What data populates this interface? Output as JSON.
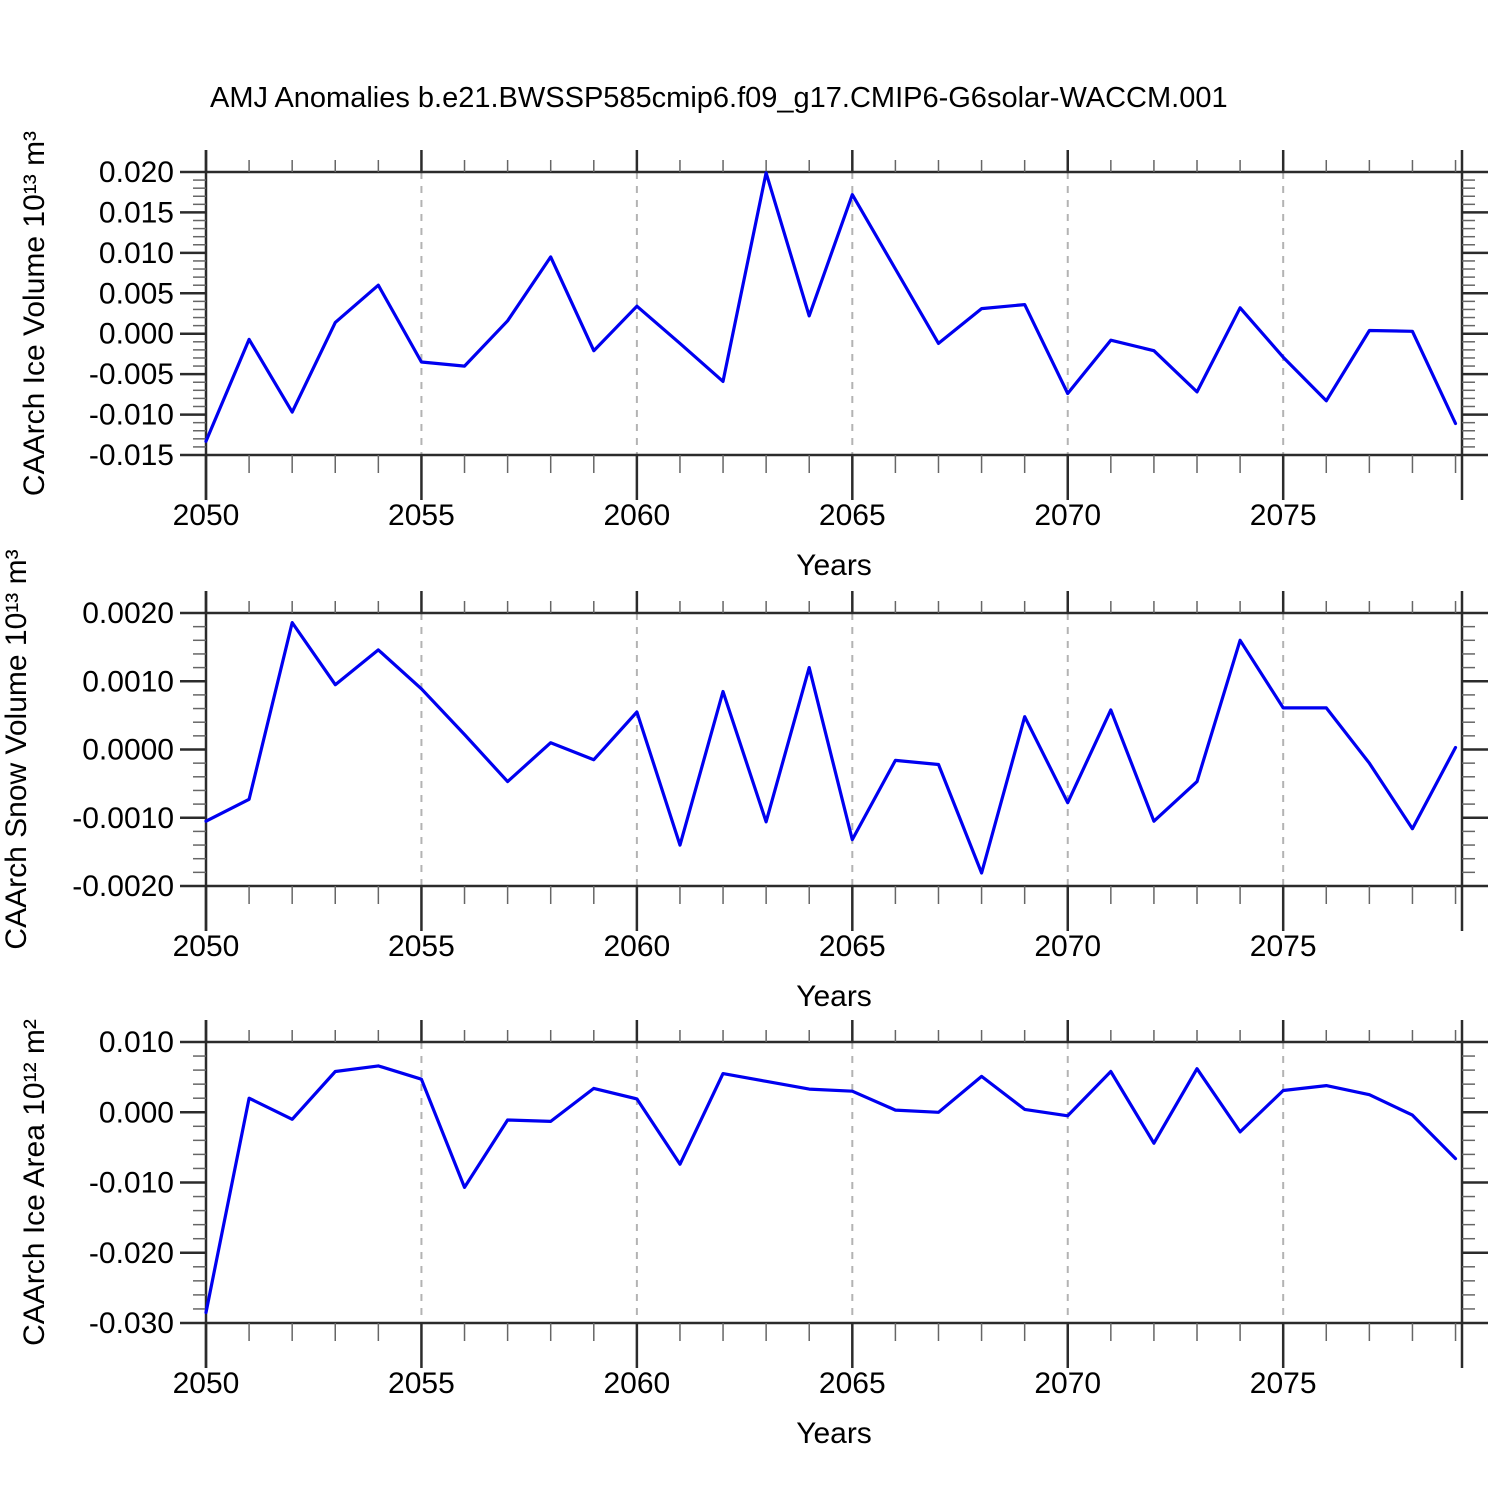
{
  "page": {
    "title": "AMJ Anomalies b.e21.BWSSP585cmip6.f09_g17.CMIP6-G6solar-WACCM.001"
  },
  "colors": {
    "line": "#0000f0",
    "axis": "#2b2b2b",
    "minor_tick": "#666666",
    "grid": "#b3b3b3",
    "text": "#000000",
    "background": "#ffffff"
  },
  "chart_data": [
    {
      "id": "ice-volume",
      "type": "line",
      "ylabel": "CAArch Ice Volume 10¹³ m³",
      "xlabel": "Years",
      "xlim": [
        2050,
        2079.15
      ],
      "ylim": [
        -0.015,
        0.02
      ],
      "grid_on": true,
      "legend": "none",
      "grid_years": [
        2055,
        2060,
        2065,
        2070,
        2075
      ],
      "xtick_values": [
        2050,
        2055,
        2060,
        2065,
        2070,
        2075
      ],
      "xtick_labels": [
        "2050",
        "2055",
        "2060",
        "2065",
        "2070",
        "2075"
      ],
      "ytick_values": [
        0.02,
        0.015,
        0.01,
        0.005,
        0.0,
        -0.005,
        -0.01,
        -0.015
      ],
      "ytick_labels": [
        "0.020",
        "0.015",
        "0.010",
        "0.005",
        "0.000",
        "-0.005",
        "-0.010",
        "-0.015"
      ],
      "x": [
        2050,
        2051,
        2052,
        2053,
        2054,
        2055,
        2056,
        2057,
        2058,
        2059,
        2060,
        2061,
        2062,
        2063,
        2064,
        2065,
        2066,
        2067,
        2068,
        2069,
        2070,
        2071,
        2072,
        2073,
        2074,
        2075,
        2076,
        2077,
        2078,
        2079
      ],
      "values": [
        -0.0133,
        -0.0007,
        -0.0097,
        0.0014,
        0.006,
        -0.0035,
        -0.004,
        0.0016,
        0.0095,
        -0.0021,
        0.0034,
        -0.0012,
        -0.0059,
        0.0199,
        0.0022,
        0.0172,
        0.008,
        -0.0012,
        0.0031,
        0.0036,
        -0.0074,
        -0.0008,
        -0.0021,
        -0.0072,
        0.0032,
        -0.0029,
        -0.0083,
        0.0004,
        0.0003,
        -0.0111
      ]
    },
    {
      "id": "snow-volume",
      "type": "line",
      "ylabel": "CAArch Snow Volume 10¹³ m³",
      "xlabel": "Years",
      "xlim": [
        2050,
        2079.15
      ],
      "ylim": [
        -0.002,
        0.002
      ],
      "grid_on": true,
      "legend": "none",
      "grid_years": [
        2055,
        2060,
        2065,
        2070,
        2075
      ],
      "xtick_values": [
        2050,
        2055,
        2060,
        2065,
        2070,
        2075
      ],
      "xtick_labels": [
        "2050",
        "2055",
        "2060",
        "2065",
        "2070",
        "2075"
      ],
      "ytick_values": [
        0.002,
        0.001,
        0.0,
        -0.001,
        -0.002
      ],
      "ytick_labels": [
        "0.0020",
        "0.0010",
        "0.0000",
        "-0.0010",
        "-0.0020"
      ],
      "x": [
        2050,
        2051,
        2052,
        2053,
        2054,
        2055,
        2056,
        2057,
        2058,
        2059,
        2060,
        2061,
        2062,
        2063,
        2064,
        2065,
        2066,
        2067,
        2068,
        2069,
        2070,
        2071,
        2072,
        2073,
        2074,
        2075,
        2076,
        2077,
        2078,
        2079
      ],
      "values": [
        -0.00105,
        -0.00073,
        0.00186,
        0.00095,
        0.00146,
        0.00089,
        0.00022,
        -0.00047,
        0.0001,
        -0.00015,
        0.00055,
        -0.0014,
        0.00085,
        -0.00106,
        0.0012,
        -0.00132,
        -0.00016,
        -0.00022,
        -0.00181,
        0.00048,
        -0.00078,
        0.00058,
        -0.00105,
        -0.00047,
        0.0016,
        0.00061,
        0.00061,
        -0.0002,
        -0.00116,
        3e-05
      ]
    },
    {
      "id": "ice-area",
      "type": "line",
      "ylabel": "CAArch Ice Area 10¹² m²",
      "xlabel": "Years",
      "xlim": [
        2050,
        2079.15
      ],
      "ylim": [
        -0.03,
        0.01
      ],
      "grid_on": true,
      "legend": "none",
      "grid_years": [
        2055,
        2060,
        2065,
        2070,
        2075
      ],
      "xtick_values": [
        2050,
        2055,
        2060,
        2065,
        2070,
        2075
      ],
      "xtick_labels": [
        "2050",
        "2055",
        "2060",
        "2065",
        "2070",
        "2075"
      ],
      "ytick_values": [
        0.01,
        0.0,
        -0.01,
        -0.02,
        -0.03
      ],
      "ytick_labels": [
        "0.010",
        "0.000",
        "-0.010",
        "-0.020",
        "-0.030"
      ],
      "x": [
        2050,
        2051,
        2052,
        2053,
        2054,
        2055,
        2056,
        2057,
        2058,
        2059,
        2060,
        2061,
        2062,
        2063,
        2064,
        2065,
        2066,
        2067,
        2068,
        2069,
        2070,
        2071,
        2072,
        2073,
        2074,
        2075,
        2076,
        2077,
        2078,
        2079
      ],
      "values": [
        -0.0285,
        0.002,
        -0.001,
        0.0058,
        0.0066,
        0.0047,
        -0.0107,
        -0.0011,
        -0.0013,
        0.0034,
        0.0019,
        -0.0074,
        0.0055,
        0.0044,
        0.0033,
        0.003,
        0.0003,
        0.0,
        0.0051,
        0.0004,
        -0.0005,
        0.0058,
        -0.0044,
        0.0062,
        -0.0028,
        0.0031,
        0.0038,
        0.0025,
        -0.0004,
        -0.0066
      ]
    }
  ]
}
